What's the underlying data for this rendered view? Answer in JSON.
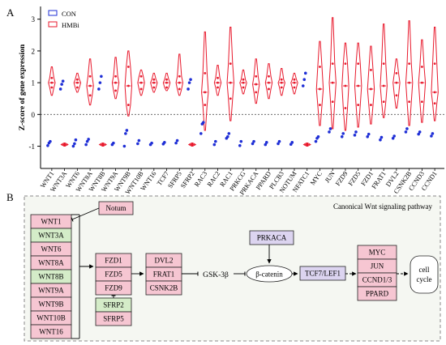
{
  "panel_a_label": "A",
  "panel_b_label": "B",
  "chart_data": {
    "type": "violin",
    "ylabel": "Z-score of gene expression",
    "ylim": [
      -1.7,
      3.4
    ],
    "yticks": [
      -1,
      0,
      1,
      2,
      3
    ],
    "reference_line": 0,
    "legend_placement": "top-left",
    "colors": {
      "CON": "#1f2fd6",
      "HMBi": "#e8192c"
    },
    "series": [
      {
        "name": "CON",
        "points": {
          "WNT1": [
            -0.98,
            -0.9,
            -0.85
          ],
          "WNT3A": [
            0.8,
            0.95,
            1.05
          ],
          "WNT6": [
            -1.0,
            -0.92,
            -0.8
          ],
          "WNT8A": [
            -0.95,
            -0.85,
            -0.78
          ],
          "WNT8B": [
            0.8,
            1.0,
            1.2
          ],
          "WNT9A": [
            -0.95,
            -0.9
          ],
          "WNT9B": [
            -1.0,
            -0.6,
            -0.5
          ],
          "WNT10B": [
            -0.92,
            -0.82
          ],
          "WNT16": [
            -0.95,
            -0.9
          ],
          "TCF7": [
            -0.93,
            -0.88
          ],
          "SFRP5": [
            -0.9,
            -0.82
          ],
          "SFRP2": [
            0.8,
            1.0,
            1.1
          ],
          "RAC3": [
            -0.6,
            -0.3,
            -0.25
          ],
          "RAC2": [
            -0.95,
            -0.85
          ],
          "RAC1": [
            -0.75,
            -0.7,
            -0.6
          ],
          "PRKCG": [
            -0.98,
            -0.85
          ],
          "PRKACA": [
            -0.92,
            -0.85
          ],
          "PPARD": [
            -0.95,
            -0.88
          ],
          "PLCB3": [
            -0.92,
            -0.85
          ],
          "NOTUM": [
            -0.94,
            -0.88
          ],
          "NFATC1": [
            0.9,
            1.1,
            1.3
          ],
          "MYC": [
            -0.85,
            -0.75,
            -0.7
          ],
          "JUN": [
            -0.55,
            -0.45
          ],
          "FZD9": [
            -0.7,
            -0.6
          ],
          "FZD5": [
            -0.65,
            -0.55
          ],
          "FZD1": [
            -0.7,
            -0.62
          ],
          "FRAT1": [
            -0.8,
            -0.72
          ],
          "DVL2": [
            -0.75,
            -0.68
          ],
          "CSNK2B": [
            -0.55,
            -0.45
          ],
          "CCND3": [
            -0.62,
            -0.55
          ],
          "CCND1": [
            -0.68,
            -0.6
          ]
        }
      },
      {
        "name": "HMBi",
        "violins": {
          "WNT1": [
            0.6,
            0.85,
            1.0,
            1.15,
            1.5
          ],
          "WNT3A": [
            -1.0,
            -0.97,
            -0.95,
            -0.92,
            -0.9
          ],
          "WNT6": [
            0.7,
            0.85,
            1.0,
            1.1,
            1.3
          ],
          "WNT8A": [
            0.3,
            0.6,
            0.9,
            1.2,
            1.75
          ],
          "WNT8B": [
            -1.0,
            -0.97,
            -0.95,
            -0.92,
            -0.9
          ],
          "WNT9A": [
            0.5,
            0.75,
            1.0,
            1.2,
            1.8
          ],
          "WNT9B": [
            -0.05,
            0.3,
            0.9,
            1.5,
            2.0
          ],
          "WNT10B": [
            0.6,
            0.8,
            1.0,
            1.2,
            1.4
          ],
          "WNT16": [
            0.7,
            0.85,
            1.0,
            1.1,
            1.3
          ],
          "TCF7": [
            0.75,
            0.85,
            1.0,
            1.1,
            1.3
          ],
          "SFRP5": [
            0.6,
            0.8,
            1.0,
            1.2,
            1.9
          ],
          "SFRP2": [
            -1.0,
            -0.97,
            -0.95,
            -0.92,
            -0.9
          ],
          "RAC3": [
            -0.5,
            0.3,
            0.7,
            1.3,
            2.6
          ],
          "RAC2": [
            0.6,
            0.85,
            1.0,
            1.15,
            1.55
          ],
          "RAC1": [
            -0.2,
            0.5,
            1.0,
            1.6,
            2.75
          ],
          "PRKCG": [
            0.65,
            0.85,
            1.0,
            1.1,
            1.4
          ],
          "PRKACA": [
            0.35,
            0.7,
            0.95,
            1.2,
            1.75
          ],
          "PPARD": [
            0.5,
            0.8,
            1.0,
            1.2,
            1.6
          ],
          "PLCB3": [
            0.6,
            0.85,
            1.0,
            1.1,
            1.45
          ],
          "NOTUM": [
            0.65,
            0.85,
            1.0,
            1.1,
            1.3
          ],
          "NFATC1": [
            -1.0,
            -0.97,
            -0.95,
            -0.92,
            -0.9
          ],
          "MYC": [
            -0.35,
            0.3,
            0.8,
            1.5,
            2.3
          ],
          "JUN": [
            -0.45,
            0.4,
            1.0,
            1.6,
            3.05
          ],
          "FZD9": [
            -0.5,
            0.2,
            0.9,
            1.6,
            2.25
          ],
          "FZD5": [
            -0.4,
            0.3,
            0.9,
            1.6,
            2.25
          ],
          "FZD1": [
            -0.3,
            0.3,
            0.8,
            1.4,
            2.15
          ],
          "FRAT1": [
            -0.1,
            0.4,
            0.9,
            1.6,
            2.85
          ],
          "DVL2": [
            0.2,
            0.6,
            1.0,
            1.3,
            1.75
          ],
          "CSNK2B": [
            -0.35,
            0.4,
            1.0,
            1.6,
            2.95
          ],
          "CCND3": [
            -0.25,
            0.4,
            1.0,
            1.5,
            2.35
          ],
          "CCND1": [
            -0.2,
            0.35,
            0.7,
            1.6,
            2.75
          ]
        }
      }
    ],
    "categories": [
      "WNT1",
      "WNT3A",
      "WNT6",
      "WNT8A",
      "WNT8B",
      "WNT9A",
      "WNT9B",
      "WNT10B",
      "WNT16",
      "TCF7",
      "SFRP5",
      "SFRP2",
      "RAC3",
      "RAC2",
      "RAC1",
      "PRKCG",
      "PRKACA",
      "PPARD",
      "PLCB3",
      "NOTUM",
      "NFATC1",
      "MYC",
      "JUN",
      "FZD9",
      "FZD5",
      "FZD1",
      "FRAT1",
      "DVL2",
      "CSNK2B",
      "CCND3",
      "CCND1"
    ]
  },
  "pathway": {
    "title": "Canonical Wnt signaling pathway",
    "colors": {
      "pink": "#f6c6d2",
      "green": "#d4ecc8",
      "purple": "#dcd4f0",
      "white": "#ffffff"
    },
    "wnt_ligands": [
      {
        "label": "WNT1",
        "fill": "pink"
      },
      {
        "label": "WNT3A",
        "fill": "green"
      },
      {
        "label": "WNT6",
        "fill": "pink"
      },
      {
        "label": "WNT8A",
        "fill": "pink"
      },
      {
        "label": "WNT8B",
        "fill": "green"
      },
      {
        "label": "WNT9A",
        "fill": "pink"
      },
      {
        "label": "WNT9B",
        "fill": "pink"
      },
      {
        "label": "WNT10B",
        "fill": "pink"
      },
      {
        "label": "WNT16",
        "fill": "pink"
      }
    ],
    "notum": "Notum",
    "receptors": [
      "FZD1",
      "FZD5",
      "FZD9"
    ],
    "sfrp": [
      {
        "label": "SFRP2",
        "fill": "green"
      },
      {
        "label": "SFRP5",
        "fill": "pink"
      }
    ],
    "dvl": [
      "DVL2",
      "FRAT1",
      "CSNK2B"
    ],
    "gsk": "GSK-3β",
    "prkaca": "PRKACA",
    "catenin": "β-catenin",
    "tcf": "TCF7/LEF1",
    "targets": [
      {
        "label": "MYC",
        "fill": "pink"
      },
      {
        "label": "JUN",
        "fill": "pink"
      },
      {
        "label": "CCND1/3",
        "fill": "pink"
      },
      {
        "label": "PPARD",
        "fill": "pink"
      }
    ],
    "cell_cycle": [
      "cell",
      "cycle"
    ]
  }
}
